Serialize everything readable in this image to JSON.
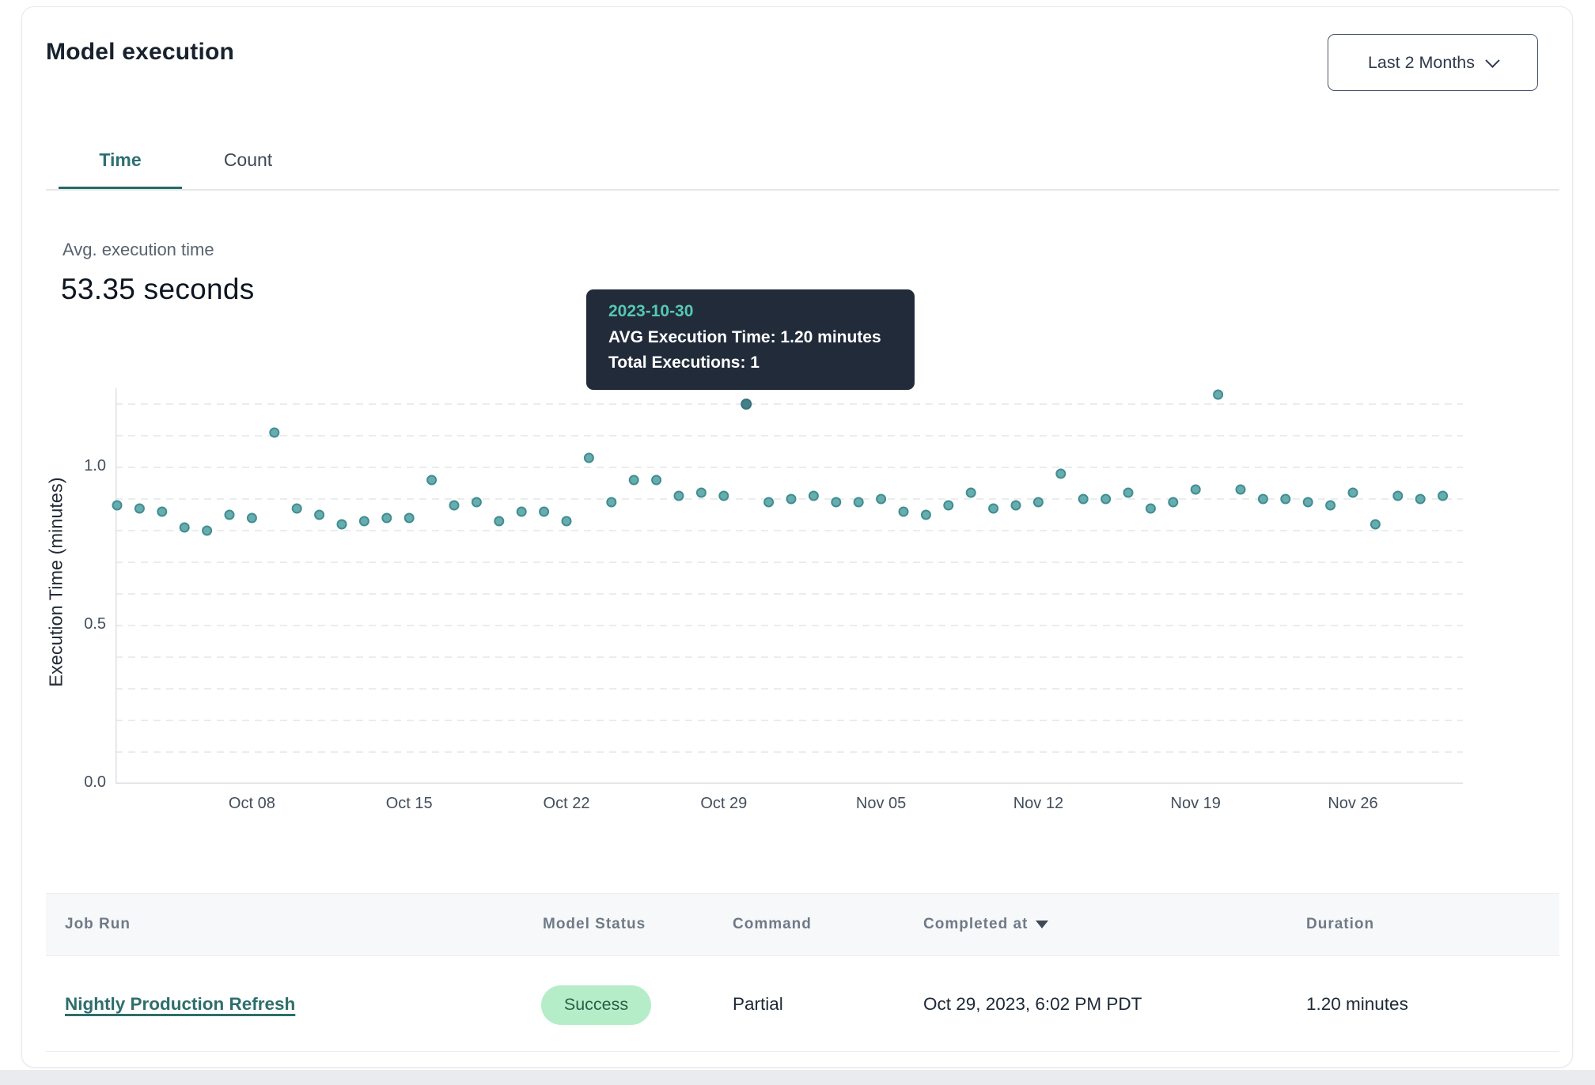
{
  "header": {
    "title": "Model execution",
    "range_selector": {
      "label": "Last 2 Months",
      "icon": "chevron-down-icon"
    }
  },
  "tabs": {
    "time": "Time",
    "count": "Count",
    "active": "Time"
  },
  "kpi": {
    "label": "Avg. execution time",
    "value": "53.35 seconds"
  },
  "tooltip": {
    "date": "2023-10-30",
    "line1": "AVG Execution Time: 1.20 minutes",
    "line2": "Total Executions: 1"
  },
  "chart_data": {
    "type": "scatter",
    "title": "",
    "xlabel": "",
    "ylabel": "Execution Time (minutes)",
    "ylim": [
      0,
      1.27
    ],
    "grid": "dashed horizontal every 0.1",
    "y_ticks": [
      {
        "v": 0.0,
        "label": "0.0"
      },
      {
        "v": 0.5,
        "label": "0.5"
      },
      {
        "v": 1.0,
        "label": "1.0"
      }
    ],
    "x_ticks": [
      {
        "date": "2023-10-08",
        "label": "Oct 08"
      },
      {
        "date": "2023-10-15",
        "label": "Oct 15"
      },
      {
        "date": "2023-10-22",
        "label": "Oct 22"
      },
      {
        "date": "2023-10-29",
        "label": "Oct 29"
      },
      {
        "date": "2023-11-05",
        "label": "Nov 05"
      },
      {
        "date": "2023-11-12",
        "label": "Nov 12"
      },
      {
        "date": "2023-11-19",
        "label": "Nov 19"
      },
      {
        "date": "2023-11-26",
        "label": "Nov 26"
      }
    ],
    "highlighted_date": "2023-10-30",
    "points": [
      {
        "date": "2023-10-02",
        "minutes": 0.88
      },
      {
        "date": "2023-10-03",
        "minutes": 0.87
      },
      {
        "date": "2023-10-04",
        "minutes": 0.86
      },
      {
        "date": "2023-10-05",
        "minutes": 0.81
      },
      {
        "date": "2023-10-06",
        "minutes": 0.8
      },
      {
        "date": "2023-10-07",
        "minutes": 0.85
      },
      {
        "date": "2023-10-08",
        "minutes": 0.84
      },
      {
        "date": "2023-10-09",
        "minutes": 1.11
      },
      {
        "date": "2023-10-10",
        "minutes": 0.87
      },
      {
        "date": "2023-10-11",
        "minutes": 0.85
      },
      {
        "date": "2023-10-12",
        "minutes": 0.82
      },
      {
        "date": "2023-10-13",
        "minutes": 0.83
      },
      {
        "date": "2023-10-14",
        "minutes": 0.84
      },
      {
        "date": "2023-10-15",
        "minutes": 0.84
      },
      {
        "date": "2023-10-16",
        "minutes": 0.96
      },
      {
        "date": "2023-10-17",
        "minutes": 0.88
      },
      {
        "date": "2023-10-18",
        "minutes": 0.89
      },
      {
        "date": "2023-10-19",
        "minutes": 0.83
      },
      {
        "date": "2023-10-20",
        "minutes": 0.86
      },
      {
        "date": "2023-10-21",
        "minutes": 0.86
      },
      {
        "date": "2023-10-22",
        "minutes": 0.83
      },
      {
        "date": "2023-10-23",
        "minutes": 1.03
      },
      {
        "date": "2023-10-24",
        "minutes": 0.89
      },
      {
        "date": "2023-10-25",
        "minutes": 0.96
      },
      {
        "date": "2023-10-26",
        "minutes": 0.96
      },
      {
        "date": "2023-10-27",
        "minutes": 0.91
      },
      {
        "date": "2023-10-28",
        "minutes": 0.92
      },
      {
        "date": "2023-10-29",
        "minutes": 0.91
      },
      {
        "date": "2023-10-30",
        "minutes": 1.2
      },
      {
        "date": "2023-10-31",
        "minutes": 0.89
      },
      {
        "date": "2023-11-01",
        "minutes": 0.9
      },
      {
        "date": "2023-11-02",
        "minutes": 0.91
      },
      {
        "date": "2023-11-03",
        "minutes": 0.89
      },
      {
        "date": "2023-11-04",
        "minutes": 0.89
      },
      {
        "date": "2023-11-05",
        "minutes": 0.9
      },
      {
        "date": "2023-11-06",
        "minutes": 0.86
      },
      {
        "date": "2023-11-07",
        "minutes": 0.85
      },
      {
        "date": "2023-11-08",
        "minutes": 0.88
      },
      {
        "date": "2023-11-09",
        "minutes": 0.92
      },
      {
        "date": "2023-11-10",
        "minutes": 0.87
      },
      {
        "date": "2023-11-11",
        "minutes": 0.88
      },
      {
        "date": "2023-11-12",
        "minutes": 0.89
      },
      {
        "date": "2023-11-13",
        "minutes": 0.98
      },
      {
        "date": "2023-11-14",
        "minutes": 0.9
      },
      {
        "date": "2023-11-15",
        "minutes": 0.9
      },
      {
        "date": "2023-11-16",
        "minutes": 0.92
      },
      {
        "date": "2023-11-17",
        "minutes": 0.87
      },
      {
        "date": "2023-11-18",
        "minutes": 0.89
      },
      {
        "date": "2023-11-19",
        "minutes": 0.93
      },
      {
        "date": "2023-11-20",
        "minutes": 1.23
      },
      {
        "date": "2023-11-21",
        "minutes": 0.93
      },
      {
        "date": "2023-11-22",
        "minutes": 0.9
      },
      {
        "date": "2023-11-23",
        "minutes": 0.9
      },
      {
        "date": "2023-11-24",
        "minutes": 0.89
      },
      {
        "date": "2023-11-25",
        "minutes": 0.88
      },
      {
        "date": "2023-11-26",
        "minutes": 0.92
      },
      {
        "date": "2023-11-27",
        "minutes": 0.82
      },
      {
        "date": "2023-11-28",
        "minutes": 0.91
      },
      {
        "date": "2023-11-29",
        "minutes": 0.9
      },
      {
        "date": "2023-11-30",
        "minutes": 0.91
      }
    ],
    "colors": {
      "point_fill": "#67adaf",
      "point_stroke": "#418e91",
      "highlight_fill": "#44808a",
      "highlight_stroke": "#38727c",
      "gridline": "#e3e5e9",
      "axis": "#dcdfe4"
    }
  },
  "table": {
    "columns": [
      {
        "label": "Job Run"
      },
      {
        "label": "Model Status"
      },
      {
        "label": "Command"
      },
      {
        "label": "Completed at",
        "sorted": "desc"
      },
      {
        "label": "Duration"
      }
    ],
    "rows": [
      {
        "job_run": "Nightly Production Refresh",
        "model_status": "Success",
        "command": "Partial",
        "completed_at": "Oct 29, 2023, 6:02 PM PDT",
        "duration": "1.20 minutes"
      }
    ]
  },
  "colors": {
    "accent_teal": "#2e6e6c",
    "badge_bg": "#b5edc9",
    "badge_text": "#2b5e46",
    "tooltip_bg": "#222b3a",
    "tooltip_date": "#54c8b3"
  }
}
